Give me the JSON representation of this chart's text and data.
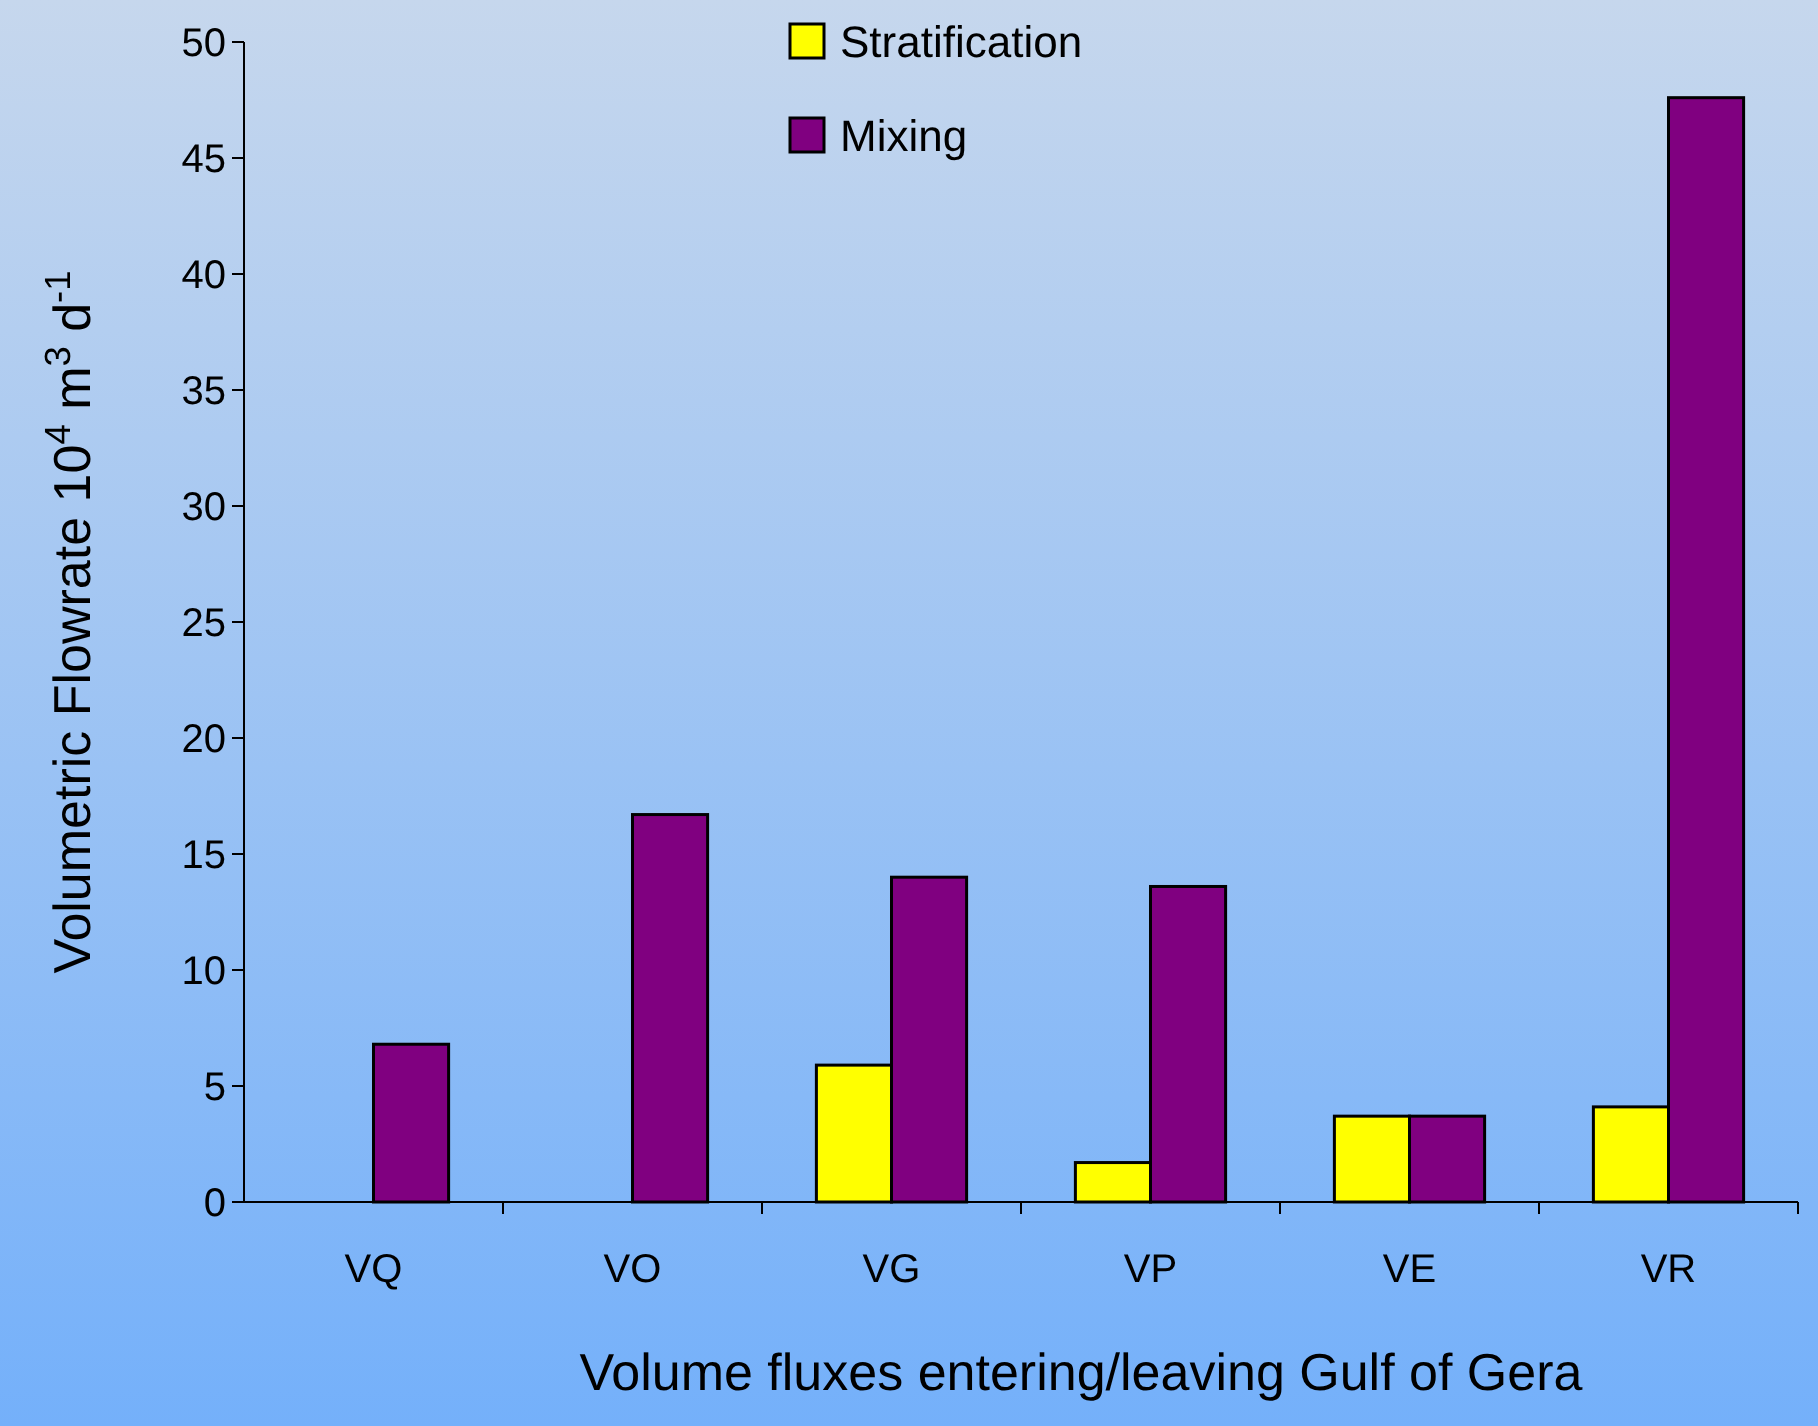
{
  "chart_data": {
    "type": "bar",
    "xlabel": "Volume fluxes entering/leaving Gulf of Gera",
    "ylabel": "Volumetric Flowrate 10$^{4}$ m$^{3}$ d$^{-1}$",
    "categories": [
      "VQ",
      "VO",
      "VG",
      "VP",
      "VE",
      "VR"
    ],
    "series": [
      {
        "name": "Stratification",
        "color": "#ffff00",
        "values": [
          0,
          0,
          5.9,
          1.7,
          3.7,
          4.1
        ]
      },
      {
        "name": "Mixing",
        "color": "#800080",
        "values": [
          6.8,
          16.7,
          14.0,
          13.6,
          3.7,
          47.6
        ]
      }
    ],
    "ylim": [
      0,
      50
    ],
    "yticks": [
      0,
      5,
      10,
      15,
      20,
      25,
      30,
      35,
      40,
      45,
      50
    ],
    "grid": false,
    "legend": "top"
  }
}
